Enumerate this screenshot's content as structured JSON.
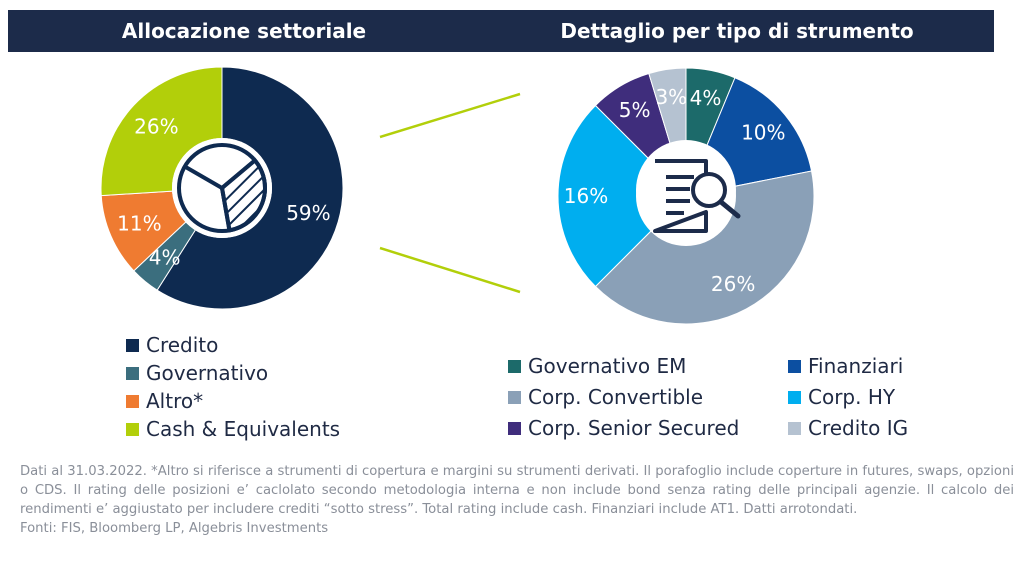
{
  "headers": {
    "left": "Allocazione settoriale",
    "right": "Dettaglio per tipo di strumento"
  },
  "chart_data": [
    {
      "type": "pie",
      "title": "Allocazione settoriale",
      "categories": [
        "Credito",
        "Governativo",
        "Altro*",
        "Cash & Equivalents"
      ],
      "values": [
        59,
        4,
        11,
        26
      ],
      "labels": [
        "59%",
        "4%",
        "11%",
        "26%"
      ],
      "colors": [
        "#0e2a50",
        "#3b6e7e",
        "#ef7b31",
        "#b2cf0a"
      ],
      "legend": "bottom",
      "center_icon": "pie-chart-icon"
    },
    {
      "type": "pie",
      "title": "Dettaglio per tipo di strumento",
      "categories": [
        "Governativo EM",
        "Finanziari",
        "Corp. Convertible",
        "Corp. HY",
        "Corp. Senior Secured",
        "Credito IG"
      ],
      "values": [
        4,
        10,
        26,
        16,
        5,
        3
      ],
      "labels": [
        "4%",
        "10%",
        "26%",
        "16%",
        "5%",
        "3%"
      ],
      "colors": [
        "#1c6a6a",
        "#0c4fa1",
        "#8aa0b7",
        "#00aeef",
        "#3f2d7c",
        "#b5c2d1"
      ],
      "legend": "bottom",
      "center_icon": "document-search-icon"
    }
  ],
  "footnote": {
    "lines": [
      "Dati al 31.03.2022. *Altro si riferisce a strumenti di copertura e margini su strumenti derivati. Il porafoglio include coperture in futures, swaps, opzioni o CDS. Il rating delle posizioni e’ caclolato secondo metodologia interna e non include bond senza rating delle principali agenzie. Il calcolo dei rendimenti e’ aggiustato per includere crediti “sotto stress”.  Total rating include cash. Finanziari include AT1. Datti arrotondati.",
      "Fonti: FIS, Bloomberg LP, Algebris Investments"
    ]
  }
}
